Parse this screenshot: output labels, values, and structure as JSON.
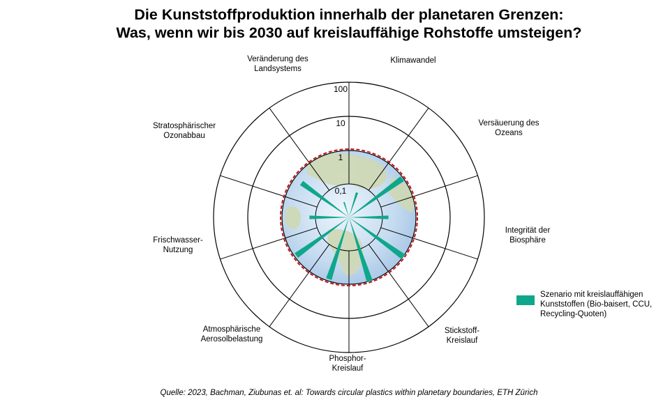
{
  "title": {
    "line1": "Die Kunststoffproduktion innerhalb der planetaren Grenzen:",
    "line2": "Was, wenn wir bis 2030 auf kreislauffähige Rohstoffe umsteigen?"
  },
  "legend": {
    "label": "Szenario mit kreislauffähigen Kunststoffen (Bio-baisert, CCU, Recycling-Quoten)",
    "color": "#0fa78c"
  },
  "source": "Quelle: 2023, Bachman, Ziubunas et. al: Towards circular plastics within planetary boundaries, ETH Zürich",
  "chart_data": {
    "type": "polar-bar",
    "scale": "log",
    "rticks": [
      "0,1",
      "1",
      "10",
      "100"
    ],
    "rtick_values": [
      0.1,
      1,
      10,
      100
    ],
    "boundary_value": 1,
    "boundary_style": "dashed-red",
    "background": "earth-globe",
    "series": [
      {
        "name": "Szenario mit kreislauffähigen Kunststoffen (Bio-baisert, CCU, Recycling-Quoten)",
        "color": "#0fa78c",
        "values": [
          0.06,
          0.9,
          0.15,
          1.0,
          1.0,
          0.85,
          0.85,
          0.15,
          0.55,
          0.03
        ]
      }
    ],
    "categories": [
      {
        "label": "Klimawandel",
        "value": 0.06
      },
      {
        "label": "Versäuerung des Ozeans",
        "value": 0.9
      },
      {
        "label": "Integrität der Biosphäre",
        "value": 0.15
      },
      {
        "label": "Stickstoff-Kreislauf",
        "value": 1.0
      },
      {
        "label": "Phosphor-Kreislauf",
        "value": 1.0
      },
      {
        "label": "Atmosphärische Aerosolbelastung",
        "value": 0.85
      },
      {
        "label": "Frischwasser-Nutzung",
        "value": 0.85
      },
      {
        "label": "Stratosphärischer Ozonabbau",
        "value": 0.15
      },
      {
        "label": "Veränderung des Landsystems",
        "value": 0.55
      },
      {
        "label": "",
        "value": 0.03
      }
    ]
  }
}
